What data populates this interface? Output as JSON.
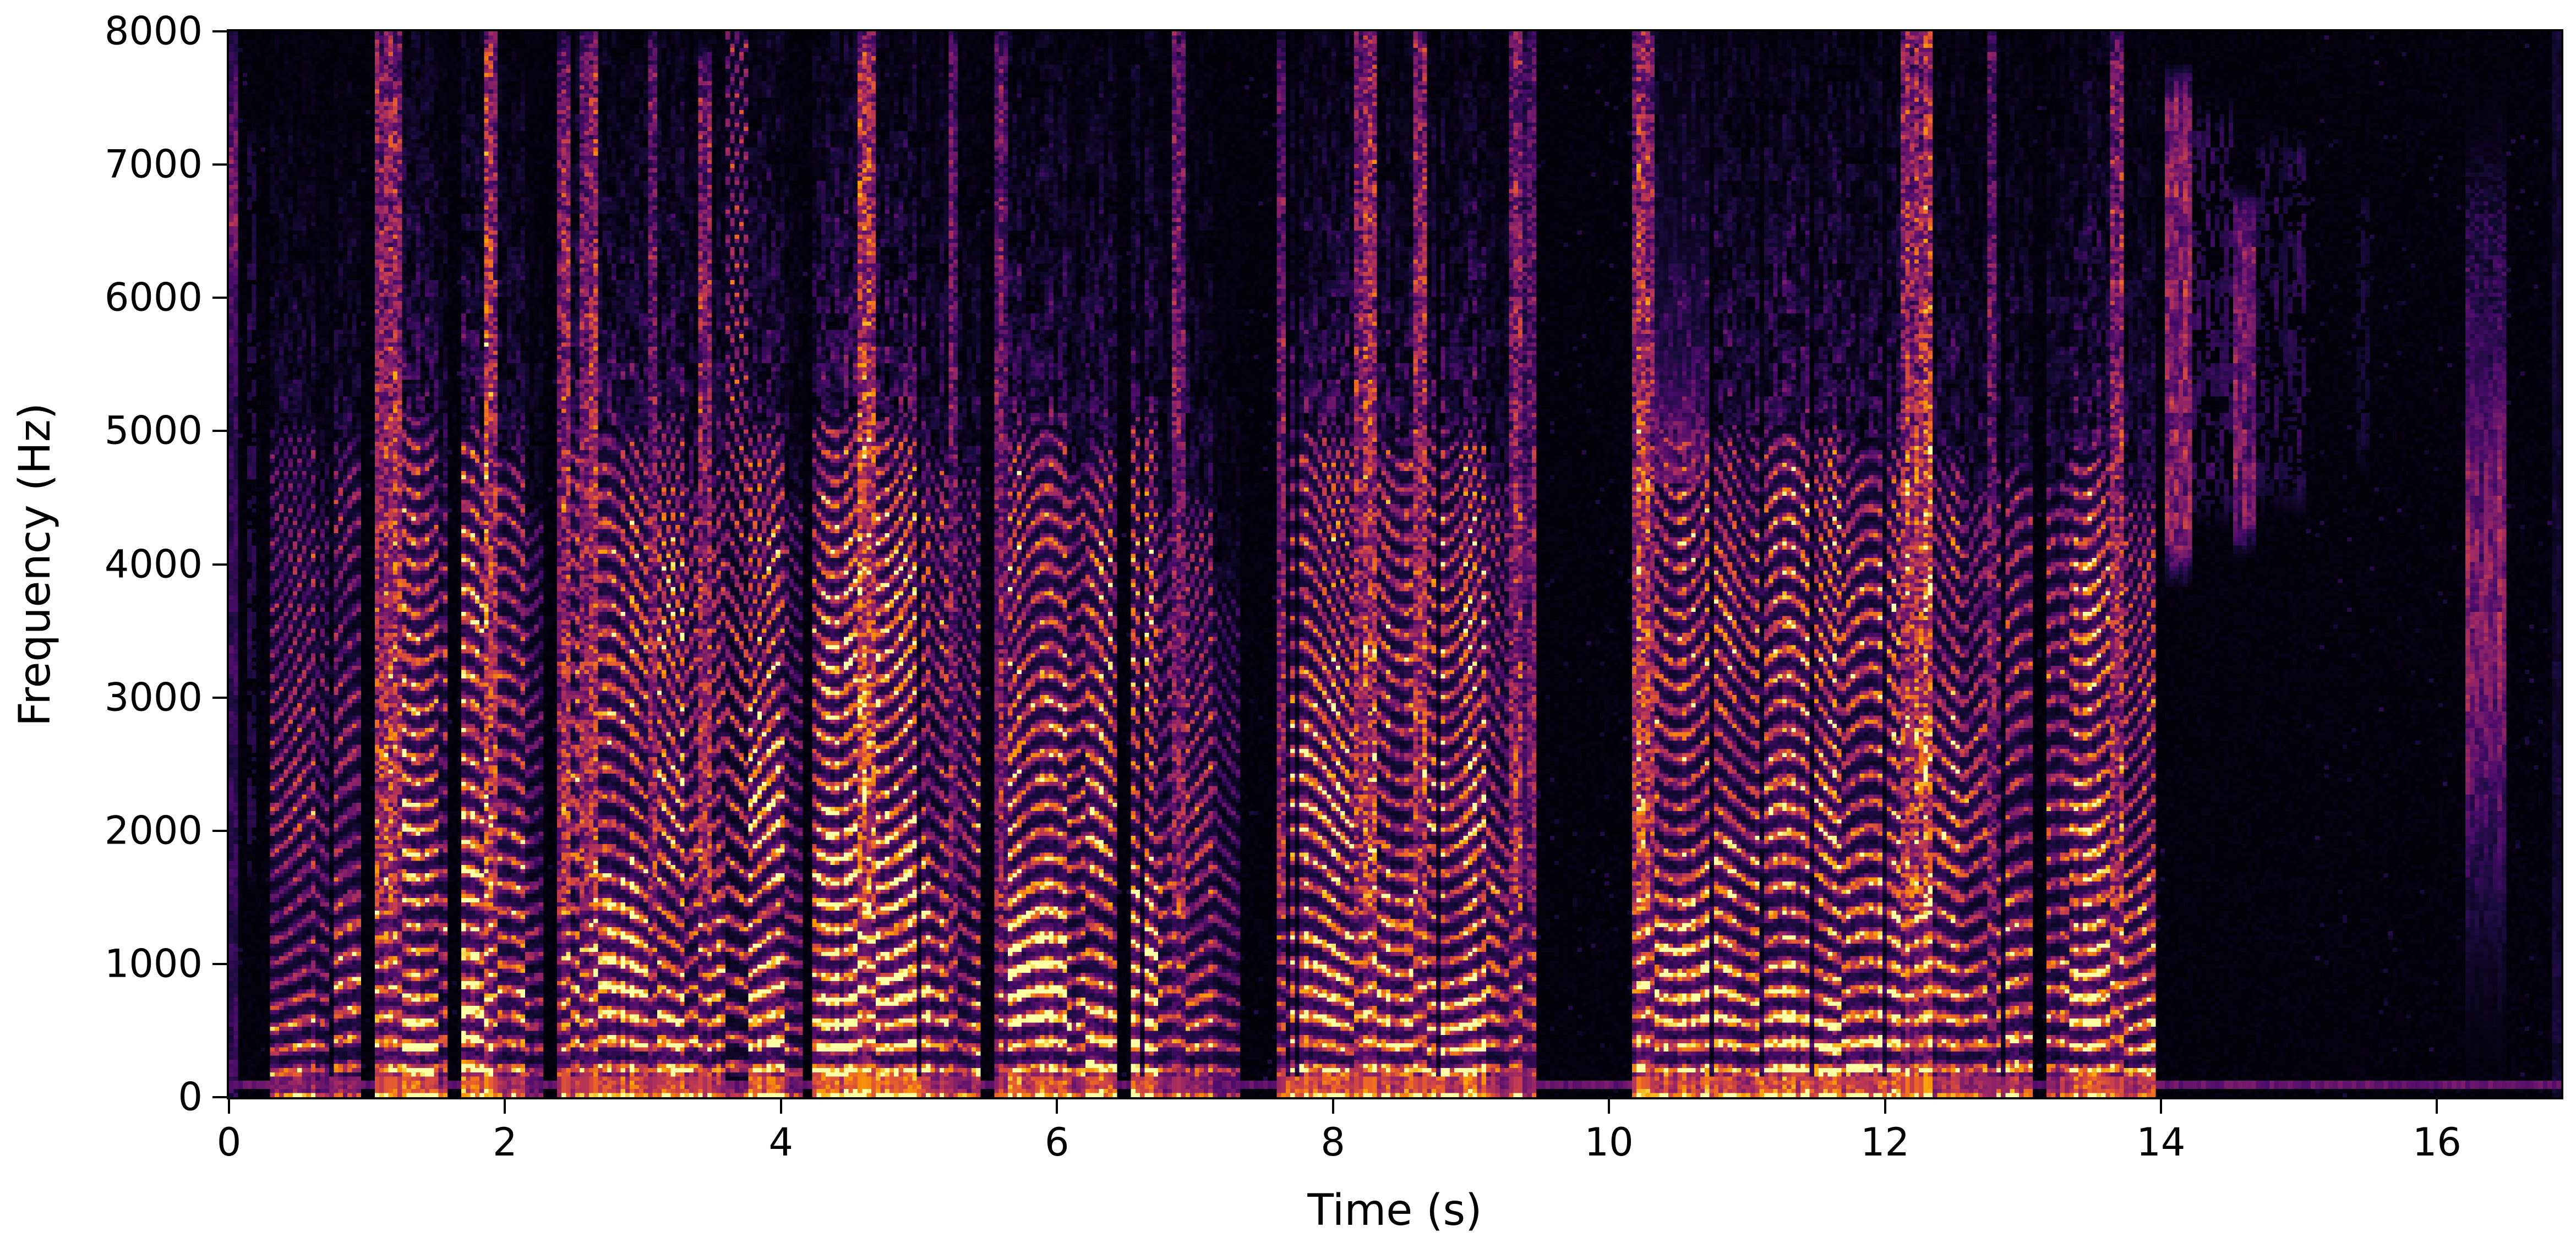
{
  "chart_data": {
    "type": "heatmap",
    "subtype": "speech-spectrogram",
    "title": "",
    "xlabel": "Time (s)",
    "ylabel": "Frequency (Hz)",
    "x_range": [
      0,
      16.9
    ],
    "y_range": [
      0,
      8000
    ],
    "grid": false,
    "legend": "none",
    "colorbar": "none",
    "x_ticks": {
      "values": [
        0,
        2,
        4,
        6,
        8,
        10,
        12,
        14,
        16
      ],
      "labels": [
        "0",
        "2",
        "4",
        "6",
        "8",
        "10",
        "12",
        "14",
        "16"
      ]
    },
    "y_ticks": {
      "values": [
        0,
        1000,
        2000,
        3000,
        4000,
        5000,
        6000,
        7000,
        8000
      ],
      "labels": [
        "0",
        "1000",
        "2000",
        "3000",
        "4000",
        "5000",
        "6000",
        "7000",
        "8000"
      ]
    },
    "colormap": {
      "name": "inferno",
      "stops": [
        [
          0.0,
          "#000004"
        ],
        [
          0.12,
          "#160b39"
        ],
        [
          0.25,
          "#480b6a"
        ],
        [
          0.38,
          "#7a1c6c"
        ],
        [
          0.5,
          "#a52c60"
        ],
        [
          0.62,
          "#cf4446"
        ],
        [
          0.74,
          "#ee6925"
        ],
        [
          0.86,
          "#fb9b06"
        ],
        [
          0.95,
          "#f6d13d"
        ],
        [
          1.0,
          "#fcffa4"
        ]
      ]
    },
    "persistent_low_band": {
      "f_low": 40,
      "f_high": 118,
      "level": 0.3
    },
    "pitch_hz_base": 190,
    "segment_format": "[t_start_s, t_end_s, type, amplitude, p1, p2] — voiced/streak/dashed/plume: p1=max_freq_hz; hiss/blob: p1=f_low_hz, p2=f_high_hz; edge: p1=bump_freq_hz",
    "segments": [
      [
        0.0,
        0.06,
        "edge",
        0.3,
        6700,
        0
      ],
      [
        0.06,
        0.13,
        "silence",
        0,
        0,
        0
      ],
      [
        0.13,
        0.2,
        "hiss",
        0.16,
        1500,
        7400
      ],
      [
        0.2,
        0.3,
        "silence",
        0,
        0,
        0
      ],
      [
        0.3,
        0.64,
        "voiced",
        0.55,
        4800,
        0
      ],
      [
        0.64,
        0.72,
        "voiced",
        0.38,
        4200,
        0
      ],
      [
        0.72,
        0.96,
        "voiced",
        0.52,
        4700,
        0
      ],
      [
        0.96,
        1.05,
        "silence",
        0,
        0,
        0
      ],
      [
        1.05,
        1.27,
        "streak",
        0.85,
        7900,
        0
      ],
      [
        1.27,
        1.52,
        "voiced",
        0.88,
        4900,
        0
      ],
      [
        1.52,
        1.6,
        "voiced",
        0.55,
        4400,
        0
      ],
      [
        1.6,
        1.68,
        "silence",
        0,
        0,
        0
      ],
      [
        1.68,
        1.85,
        "voiced",
        0.92,
        4800,
        0
      ],
      [
        1.85,
        1.96,
        "streak",
        0.92,
        7900,
        0
      ],
      [
        1.96,
        2.14,
        "voiced",
        0.68,
        4600,
        0
      ],
      [
        2.14,
        2.27,
        "voiced",
        0.42,
        4200,
        0
      ],
      [
        2.27,
        2.39,
        "silence",
        0,
        0,
        0
      ],
      [
        2.39,
        2.47,
        "streak",
        0.72,
        7700,
        0
      ],
      [
        2.47,
        2.54,
        "voiced",
        0.8,
        4800,
        0
      ],
      [
        2.54,
        2.68,
        "streak",
        0.92,
        7900,
        0
      ],
      [
        2.68,
        3.03,
        "voiced",
        0.85,
        4800,
        0
      ],
      [
        3.03,
        3.11,
        "streak",
        0.68,
        7800,
        0
      ],
      [
        3.11,
        3.3,
        "voiced",
        0.85,
        4900,
        0
      ],
      [
        3.3,
        3.4,
        "voiced",
        0.55,
        4400,
        0
      ],
      [
        3.4,
        3.49,
        "streak",
        0.72,
        7600,
        0
      ],
      [
        3.49,
        3.6,
        "voiced",
        0.68,
        4600,
        0
      ],
      [
        3.6,
        3.76,
        "dashed",
        0.72,
        7900,
        0
      ],
      [
        3.76,
        4.02,
        "voiced",
        0.85,
        4800,
        0
      ],
      [
        4.02,
        4.16,
        "voiced",
        0.5,
        4300,
        0
      ],
      [
        4.16,
        4.24,
        "silence",
        0,
        0,
        0
      ],
      [
        4.24,
        4.56,
        "voiced",
        0.95,
        4900,
        0
      ],
      [
        4.56,
        4.68,
        "streak",
        0.95,
        7900,
        0
      ],
      [
        4.68,
        5.06,
        "voiced",
        0.95,
        4900,
        0
      ],
      [
        5.06,
        5.2,
        "voiced",
        0.65,
        4600,
        0
      ],
      [
        5.2,
        5.28,
        "streak",
        0.7,
        7800,
        0
      ],
      [
        5.28,
        5.44,
        "voiced",
        0.58,
        4500,
        0
      ],
      [
        5.44,
        5.56,
        "silence",
        0,
        0,
        0
      ],
      [
        5.56,
        5.66,
        "streak",
        0.65,
        7800,
        0
      ],
      [
        5.66,
        6.06,
        "voiced",
        0.9,
        4800,
        0
      ],
      [
        6.06,
        6.2,
        "voiced",
        0.58,
        4500,
        0
      ],
      [
        6.2,
        6.44,
        "voiced",
        0.85,
        4700,
        0
      ],
      [
        6.44,
        6.54,
        "silence",
        0,
        0,
        0
      ],
      [
        6.54,
        6.74,
        "voiced",
        0.8,
        4900,
        0
      ],
      [
        6.74,
        6.84,
        "voiced",
        0.48,
        4200,
        0
      ],
      [
        6.84,
        6.92,
        "streak",
        0.7,
        8000,
        0
      ],
      [
        6.92,
        7.14,
        "voiced",
        0.58,
        4300,
        0
      ],
      [
        7.14,
        7.32,
        "voiced",
        0.38,
        3600,
        0
      ],
      [
        7.32,
        7.58,
        "silence",
        0,
        0,
        0
      ],
      [
        7.58,
        7.66,
        "streak",
        0.6,
        7700,
        0
      ],
      [
        7.66,
        8.14,
        "voiced",
        0.9,
        4800,
        0
      ],
      [
        8.14,
        8.32,
        "streak",
        0.9,
        8000,
        0
      ],
      [
        8.32,
        8.57,
        "voiced",
        0.78,
        4700,
        0
      ],
      [
        8.57,
        8.68,
        "streak",
        0.78,
        7900,
        0
      ],
      [
        8.68,
        9.12,
        "voiced",
        0.88,
        4800,
        0
      ],
      [
        9.12,
        9.28,
        "voiced",
        0.55,
        4400,
        0
      ],
      [
        9.28,
        9.36,
        "streak",
        0.68,
        8000,
        0
      ],
      [
        9.36,
        9.48,
        "streak",
        0.5,
        7800,
        0
      ],
      [
        9.48,
        10.18,
        "silence",
        0,
        0,
        0
      ],
      [
        10.18,
        10.32,
        "streak",
        0.88,
        7900,
        0
      ],
      [
        10.32,
        10.72,
        "plume",
        0.85,
        4900,
        0
      ],
      [
        10.72,
        11.08,
        "voiced",
        0.78,
        4800,
        0
      ],
      [
        11.08,
        11.68,
        "voiced",
        0.9,
        4800,
        0
      ],
      [
        11.68,
        12.12,
        "voiced",
        0.82,
        4700,
        0
      ],
      [
        12.12,
        12.34,
        "streak",
        0.95,
        8000,
        0
      ],
      [
        12.34,
        12.58,
        "voiced",
        0.72,
        4600,
        0
      ],
      [
        12.58,
        12.74,
        "voiced",
        0.52,
        4300,
        0
      ],
      [
        12.74,
        12.82,
        "streak",
        0.62,
        7800,
        0
      ],
      [
        12.82,
        13.07,
        "voiced",
        0.68,
        4500,
        0
      ],
      [
        13.07,
        13.18,
        "silence",
        0,
        0,
        0
      ],
      [
        13.18,
        13.32,
        "voiced",
        0.58,
        4400,
        0
      ],
      [
        13.32,
        13.64,
        "voiced",
        0.88,
        4600,
        0
      ],
      [
        13.64,
        13.74,
        "streak",
        0.82,
        7800,
        0
      ],
      [
        13.74,
        13.96,
        "voiced",
        0.66,
        4300,
        0
      ],
      [
        13.96,
        14.02,
        "silence",
        0,
        0,
        0
      ],
      [
        14.02,
        14.24,
        "hiss",
        0.55,
        3800,
        7800
      ],
      [
        14.24,
        14.52,
        "hiss",
        0.2,
        4200,
        7600
      ],
      [
        14.52,
        14.7,
        "hiss",
        0.42,
        4000,
        6900
      ],
      [
        14.7,
        15.06,
        "hiss",
        0.17,
        4300,
        7400
      ],
      [
        15.06,
        15.42,
        "silence",
        0,
        0,
        0
      ],
      [
        15.42,
        15.52,
        "hiss",
        0.12,
        4600,
        7000
      ],
      [
        15.52,
        16.22,
        "silence",
        0,
        0,
        0
      ],
      [
        16.22,
        16.5,
        "blob",
        0.45,
        2200,
        5400
      ],
      [
        16.5,
        16.83,
        "silence",
        0,
        0,
        0
      ],
      [
        16.83,
        16.9,
        "edge",
        0.15,
        0,
        0
      ]
    ]
  }
}
